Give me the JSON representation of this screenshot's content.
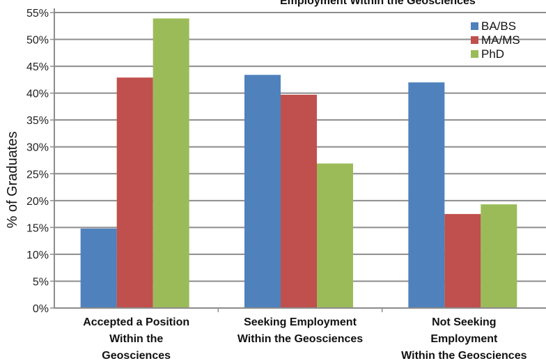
{
  "chart_data": {
    "type": "bar",
    "title": "Employment Within the Geosciences",
    "xlabel": "",
    "ylabel": "% of Graduates",
    "ylim": [
      0,
      55
    ],
    "yticks": [
      "0%",
      "5%",
      "10%",
      "15%",
      "20%",
      "25%",
      "30%",
      "35%",
      "40%",
      "45%",
      "50%",
      "55%"
    ],
    "categories": [
      [
        "Accepted a Position",
        "Within the",
        "Geosciences"
      ],
      [
        "Seeking Employment",
        "Within the Geosciences"
      ],
      [
        "Not Seeking",
        "Employment",
        "Within the Geosciences"
      ]
    ],
    "series": [
      {
        "name": "BA/BS",
        "color": "#4f81bd",
        "values": [
          14.8,
          43.4,
          42.0
        ]
      },
      {
        "name": "MA/MS",
        "color": "#c0504d",
        "values": [
          42.9,
          39.7,
          17.5
        ]
      },
      {
        "name": "PhD",
        "color": "#9bbb59",
        "values": [
          53.9,
          26.9,
          19.3
        ]
      }
    ],
    "grid": true,
    "legend_position": "top-right"
  }
}
